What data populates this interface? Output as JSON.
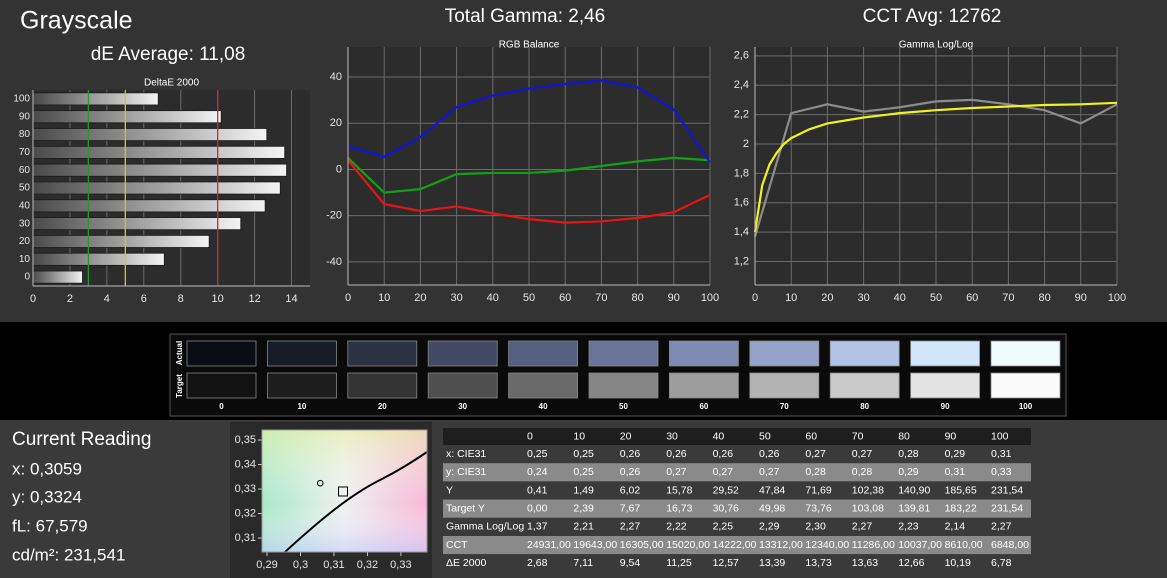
{
  "header": {
    "title": "Grayscale",
    "de_average": "dE Average: 11,08",
    "total_gamma": "Total Gamma: 2,46",
    "cct_avg": "CCT Avg: 12762"
  },
  "chart_data": [
    {
      "type": "bar",
      "orientation": "horizontal",
      "title": "DeltaE 2000",
      "categories": [
        "100",
        "90",
        "80",
        "70",
        "60",
        "50",
        "40",
        "30",
        "20",
        "10",
        "0"
      ],
      "values": [
        6.78,
        10.19,
        12.66,
        13.63,
        13.73,
        13.39,
        12.57,
        11.25,
        9.54,
        7.11,
        2.68
      ],
      "xlim": [
        0,
        15
      ],
      "xticks": [
        0,
        2,
        4,
        6,
        8,
        10,
        12,
        14
      ],
      "grid": true,
      "reference_lines": [
        {
          "value": 3,
          "color": "#22982a"
        },
        {
          "value": 5,
          "color": "#cccc2a"
        },
        {
          "value": 10,
          "color": "#d02828"
        }
      ]
    },
    {
      "type": "line",
      "title": "RGB Balance",
      "x": [
        0,
        10,
        20,
        30,
        40,
        50,
        60,
        70,
        80,
        90,
        100
      ],
      "series": [
        {
          "color": "#e81414",
          "values": [
            4,
            -15,
            -18,
            -16,
            -19,
            -21.5,
            -23,
            -22.5,
            -21,
            -18.5,
            -11
          ]
        },
        {
          "color": "#14a014",
          "values": [
            5,
            -10,
            -8.5,
            -2,
            -1.5,
            -1.5,
            -0.5,
            1.5,
            3.5,
            5,
            4
          ]
        },
        {
          "color": "#1414d8",
          "values": [
            10,
            5.5,
            14,
            27,
            32,
            35,
            37,
            38.5,
            35.5,
            26,
            3
          ]
        }
      ],
      "xlim": [
        0,
        100
      ],
      "xticks": [
        0,
        10,
        20,
        30,
        40,
        50,
        60,
        70,
        80,
        90,
        100
      ],
      "ylim": [
        -50,
        53
      ],
      "yticks": [
        -40,
        -20,
        0,
        20,
        40
      ],
      "grid": true
    },
    {
      "type": "line",
      "title": "Gamma Log/Log",
      "series": [
        {
          "color": "#8c8c8c",
          "x": [
            0,
            10,
            20,
            30,
            40,
            50,
            60,
            70,
            80,
            90,
            100
          ],
          "values": [
            1.37,
            2.21,
            2.27,
            2.22,
            2.25,
            2.29,
            2.3,
            2.27,
            2.23,
            2.14,
            2.27
          ]
        },
        {
          "color": "#f2f21c",
          "x": [
            0,
            2,
            4,
            6,
            8,
            10,
            15,
            20,
            30,
            40,
            50,
            60,
            70,
            80,
            90,
            100
          ],
          "values": [
            1.4,
            1.72,
            1.86,
            1.94,
            2.0,
            2.04,
            2.1,
            2.14,
            2.18,
            2.21,
            2.23,
            2.245,
            2.255,
            2.265,
            2.27,
            2.28
          ]
        }
      ],
      "xlim": [
        0,
        100
      ],
      "xticks": [
        0,
        10,
        20,
        30,
        40,
        50,
        60,
        70,
        80,
        90,
        100
      ],
      "ylim": [
        1.04,
        2.66
      ],
      "yticks": [
        {
          "value": 1.2,
          "label": "1,2"
        },
        {
          "value": 1.4,
          "label": "1,4"
        },
        {
          "value": 1.6,
          "label": "1,6"
        },
        {
          "value": 1.8,
          "label": "1,8"
        },
        {
          "value": 2,
          "label": "2"
        },
        {
          "value": 2.2,
          "label": "2,2"
        },
        {
          "value": 2.4,
          "label": "2,4"
        },
        {
          "value": 2.6,
          "label": "2,6"
        }
      ],
      "grid": true
    },
    {
      "type": "scatter",
      "series": [
        {
          "marker": "circle",
          "x": [
            0.3059
          ],
          "y": [
            0.3324
          ]
        },
        {
          "marker": "square",
          "x": [
            0.3127
          ],
          "y": [
            0.329
          ]
        }
      ],
      "xlim": [
        0.2885,
        0.3378
      ],
      "xticks": [
        {
          "value": 0.29,
          "label": "0,29"
        },
        {
          "value": 0.3,
          "label": "0,3"
        },
        {
          "value": 0.31,
          "label": "0,31"
        },
        {
          "value": 0.32,
          "label": "0,32"
        },
        {
          "value": 0.33,
          "label": "0,33"
        }
      ],
      "ylim": [
        0.3043,
        0.3541
      ],
      "yticks": [
        {
          "value": 0.31,
          "label": "0,31"
        },
        {
          "value": 0.32,
          "label": "0,32"
        },
        {
          "value": 0.33,
          "label": "0,33"
        },
        {
          "value": 0.34,
          "label": "0,34"
        },
        {
          "value": 0.35,
          "label": "0,35"
        }
      ],
      "grid": false
    }
  ],
  "swatches": {
    "row_labels": [
      "Actual",
      "Target"
    ],
    "labels": [
      "0",
      "10",
      "20",
      "30",
      "40",
      "50",
      "60",
      "70",
      "80",
      "90",
      "100"
    ],
    "actual": [
      "#0b0d14",
      "#161b28",
      "#2b3244",
      "#434a66",
      "#555f80",
      "#6a7499",
      "#7f8bb3",
      "#96a3c9",
      "#b2c3e6",
      "#d2e6fb",
      "#eefcff"
    ],
    "target": [
      "#121212",
      "#1d1d1d",
      "#333333",
      "#4f4f4f",
      "#6a6a6a",
      "#858585",
      "#9d9d9d",
      "#b3b3b3",
      "#cacaca",
      "#e3e3e3",
      "#fbfbfb"
    ]
  },
  "current_reading": {
    "title": "Current Reading",
    "x": "x: 0,3059",
    "y": "y: 0,3324",
    "fl": "fL: 67,579",
    "cdm2": "cd/m²: 231,541"
  },
  "table": {
    "header": [
      "0",
      "10",
      "20",
      "30",
      "40",
      "50",
      "60",
      "70",
      "80",
      "90",
      "100"
    ],
    "rows": [
      [
        "x: CIE31",
        "0,25",
        "0,25",
        "0,26",
        "0,26",
        "0,26",
        "0,26",
        "0,27",
        "0,27",
        "0,28",
        "0,29",
        "0,31"
      ],
      [
        "y: CIE31",
        "0,24",
        "0,25",
        "0,26",
        "0,27",
        "0,27",
        "0,27",
        "0,28",
        "0,28",
        "0,29",
        "0,31",
        "0,33"
      ],
      [
        "Y",
        "0,41",
        "1,49",
        "6,02",
        "15,78",
        "29,52",
        "47,84",
        "71,69",
        "102,38",
        "140,90",
        "185,65",
        "231,54"
      ],
      [
        "Target Y",
        "0,00",
        "2,39",
        "7,67",
        "16,73",
        "30,76",
        "49,98",
        "73,76",
        "103,08",
        "139,81",
        "183,22",
        "231,54"
      ],
      [
        "Gamma Log/Log",
        "1,37",
        "2,21",
        "2,27",
        "2,22",
        "2,25",
        "2,29",
        "2,30",
        "2,27",
        "2,23",
        "2,14",
        "2,27"
      ],
      [
        "CCT",
        "24931,00",
        "19643,00",
        "16305,00",
        "15020,00",
        "14222,00",
        "13312,00",
        "12340,00",
        "11286,00",
        "10037,00",
        "8610,00",
        "6848,00"
      ],
      [
        "ΔE 2000",
        "2,68",
        "7,11",
        "9,54",
        "11,25",
        "12,57",
        "13,39",
        "13,73",
        "13,63",
        "12,66",
        "10,19",
        "6,78"
      ]
    ]
  }
}
